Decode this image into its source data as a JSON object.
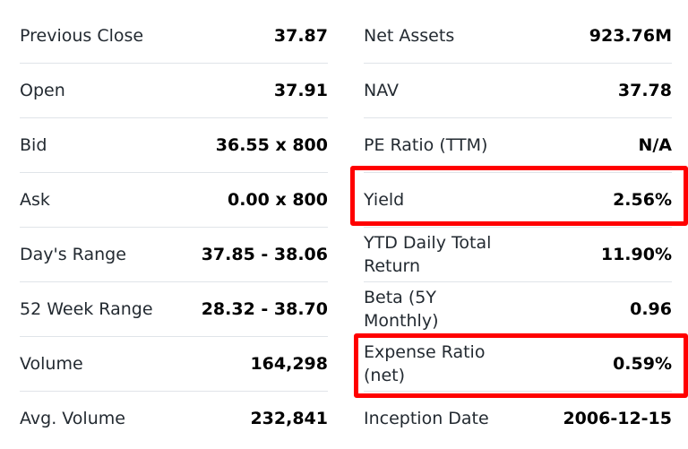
{
  "left": [
    {
      "label": "Previous Close",
      "value": "37.87"
    },
    {
      "label": "Open",
      "value": "37.91"
    },
    {
      "label": "Bid",
      "value": "36.55 x 800"
    },
    {
      "label": "Ask",
      "value": "0.00 x 800"
    },
    {
      "label": "Day's Range",
      "value": "37.85 - 38.06"
    },
    {
      "label": "52 Week Range",
      "value": "28.32 - 38.70"
    },
    {
      "label": "Volume",
      "value": "164,298"
    },
    {
      "label": "Avg. Volume",
      "value": "232,841"
    }
  ],
  "right": [
    {
      "label": "Net Assets",
      "value": "923.76M"
    },
    {
      "label": "NAV",
      "value": "37.78"
    },
    {
      "label": "PE Ratio (TTM)",
      "value": "N/A"
    },
    {
      "label": "Yield",
      "value": "2.56%",
      "highlighted": true
    },
    {
      "label": "YTD Daily Total Return",
      "value": "11.90%"
    },
    {
      "label": "Beta (5Y Monthly)",
      "value": "0.96"
    },
    {
      "label": "Expense Ratio (net)",
      "value": "0.59%",
      "highlighted": true
    },
    {
      "label": "Inception Date",
      "value": "2006-12-15"
    }
  ],
  "highlight_color": "#ff0000"
}
